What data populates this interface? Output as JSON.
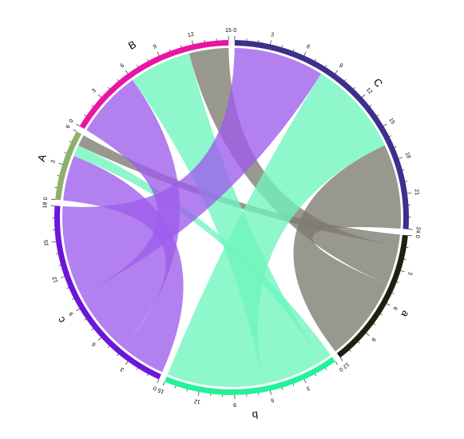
{
  "chart_data": {
    "type": "chord",
    "title": "",
    "gap_degrees": 2,
    "sectors": [
      {
        "name": "C",
        "total": 24,
        "color": "#3f2f8c",
        "label": "C"
      },
      {
        "name": "a",
        "total": 12,
        "color": "#1f2110",
        "label": "a"
      },
      {
        "name": "b",
        "total": 15,
        "color": "#22f29a",
        "label": "b"
      },
      {
        "name": "c",
        "total": 18,
        "color": "#6d16d9",
        "label": "c"
      },
      {
        "name": "A",
        "total": 6,
        "color": "#8fb06a",
        "label": "A"
      },
      {
        "name": "B",
        "total": 15,
        "color": "#ea14a4",
        "label": "B"
      }
    ],
    "links": [
      {
        "from": "A",
        "to": "c",
        "value": 4,
        "color": "#9d5cec"
      },
      {
        "from": "A",
        "to": "b",
        "value": 1,
        "color": "#6ef5bd"
      },
      {
        "from": "A",
        "to": "a",
        "value": 1,
        "color": "#7c7b70"
      },
      {
        "from": "B",
        "to": "c",
        "value": 6,
        "color": "#9d5cec"
      },
      {
        "from": "B",
        "to": "b",
        "value": 5.5,
        "color": "#6ef5bd"
      },
      {
        "from": "B",
        "to": "a",
        "value": 3.5,
        "color": "#7c7b70"
      },
      {
        "from": "C",
        "to": "c",
        "value": 8,
        "color": "#9d5cec"
      },
      {
        "from": "C",
        "to": "b",
        "value": 8.5,
        "color": "#6ef5bd"
      },
      {
        "from": "C",
        "to": "a",
        "value": 7.5,
        "color": "#7c7b70"
      }
    ]
  }
}
